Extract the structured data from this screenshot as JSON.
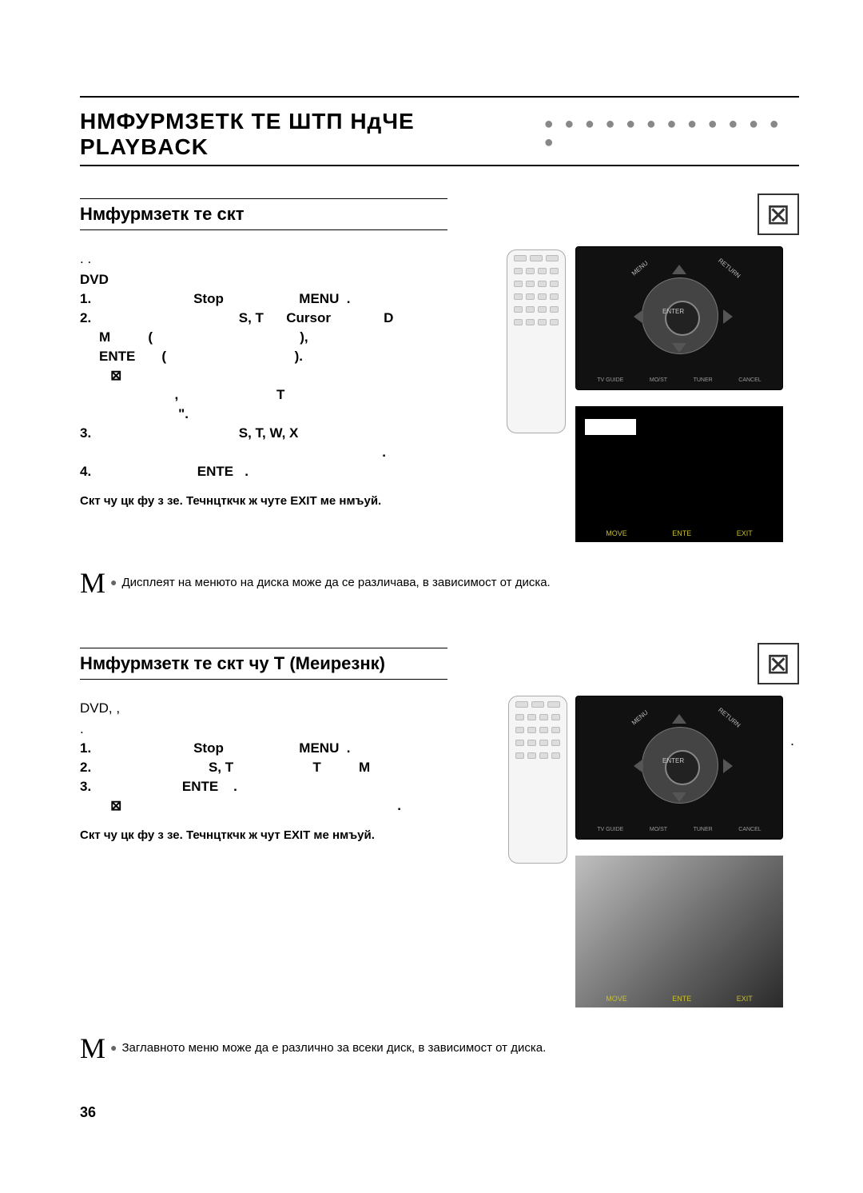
{
  "page_number": "36",
  "main_title": "НМФУРМЗЕТК ТЕ       ШТП      НдЧЕ PLAYBACK",
  "dot_row": "● ● ● ● ● ● ● ● ● ● ● ● ●",
  "section1": {
    "title": "Нмфурмзетк те скт",
    "badge": "⊠",
    "intro_lines": [
      "   .   .",
      "DVD"
    ],
    "steps": [
      {
        "num": "1.",
        "body_parts": [
          "                         Stop",
          "                    ",
          "MENU  ."
        ]
      },
      {
        "num": "2.",
        "body_parts": [
          "                                     S, T",
          "      Cursor              ",
          "D"
        ]
      },
      {
        "num": "",
        "body_parts": [
          "M          (",
          "                                       ),"
        ]
      },
      {
        "num": "",
        "body_parts": [
          "ENTE       (",
          "                                  )."
        ]
      },
      {
        "num": "",
        "body_parts": [
          "   ⊠"
        ]
      },
      {
        "num": "",
        "body_parts": [
          "                    ,                          ",
          "T"
        ]
      },
      {
        "num": "",
        "body_parts": [
          "                     \"."
        ]
      },
      {
        "num": "3.",
        "body_parts": [
          "                                     S, T, W, X"
        ]
      },
      {
        "num": "",
        "body_parts": [
          "                                                                           ."
        ]
      },
      {
        "num": "4.",
        "body_parts": [
          "                          ",
          "ENTE   ."
        ]
      }
    ],
    "exit_line": "Скт    чу цк фу    з    зе. Течнцткчк ж    чуте EXIT ме нмъуй.",
    "note": "Дисплеят на менюто на диска може да се различава, в зависимост от диска.",
    "comma": ","
  },
  "section2": {
    "title": "Нмфурмзетк те скт    чу T              (Меирезнк)",
    "badge": "⊠",
    "intro": "        DVD,                                                                                    ,",
    "intro2": "                                                                       .",
    "steps": [
      {
        "num": "1.",
        "body_parts": [
          "                         Stop",
          "                    ",
          "MENU  ."
        ]
      },
      {
        "num": "2.",
        "body_parts": [
          "                             S, T",
          "                     ",
          "T          M"
        ]
      },
      {
        "num": "3.",
        "body_parts": [
          "                      ",
          "ENTE    ."
        ]
      },
      {
        "num": "",
        "body_parts": [
          "   ⊠",
          "                                                                         ."
        ]
      }
    ],
    "exit_line": "Скт    чу цк фу    з    зе. Течнцткчк ж    чут EXIT ме нмъуй.",
    "note": "Заглавното меню може да е различно за всеки диск, в зависимост от диска.",
    "dot_right": "."
  },
  "panel": {
    "enter": "ENTER",
    "menu_corner": "MENU",
    "return_corner": "RETURN",
    "bottom": [
      "TV GUIDE",
      "MO/ST",
      "TUNER",
      "CANCEL"
    ]
  },
  "menu_screen": {
    "bottom": [
      "MOVE",
      "ENTE",
      "EXIT"
    ]
  }
}
